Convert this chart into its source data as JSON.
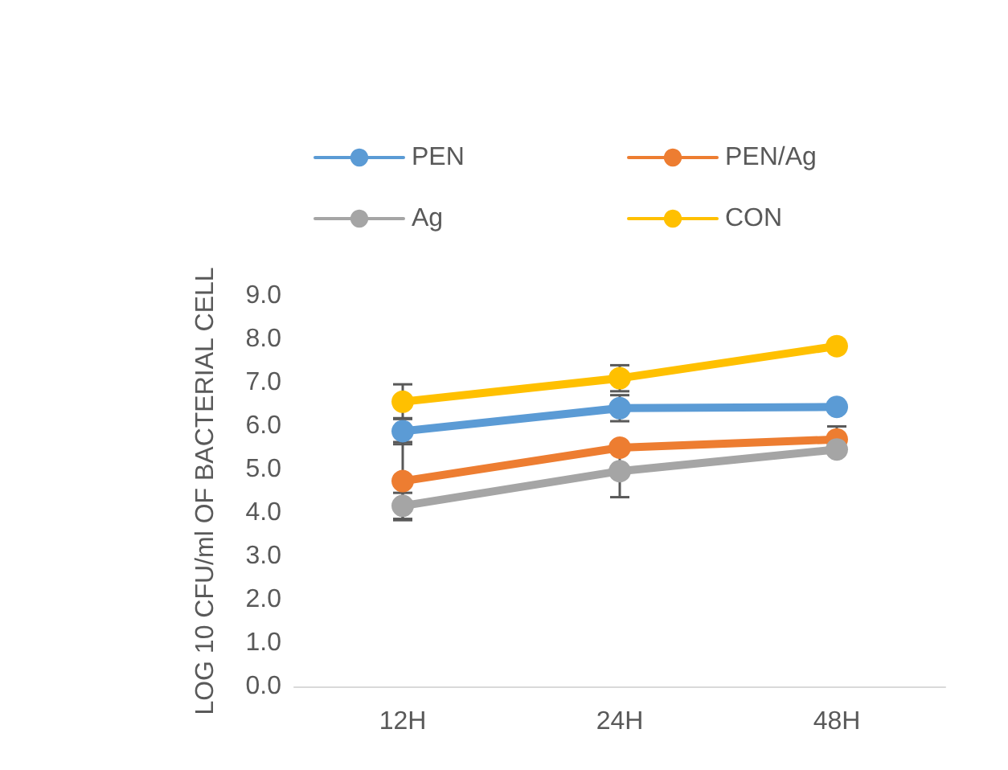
{
  "chart_data": {
    "type": "line",
    "ylabel": "LOG 10 CFU/ml OF BACTERIAL CELL",
    "categories": [
      "12H",
      "24H",
      "48H"
    ],
    "series": [
      {
        "name": "PEN",
        "color": "#5b9bd5",
        "values": [
          5.88,
          6.41,
          6.44
        ],
        "errors": [
          0.3,
          0.3,
          null
        ]
      },
      {
        "name": "PEN/Ag",
        "color": "#ed7d31",
        "values": [
          4.73,
          5.5,
          5.69
        ],
        "errors": [
          0.9,
          null,
          0.3
        ]
      },
      {
        "name": "Ag",
        "color": "#a5a5a5",
        "values": [
          4.16,
          4.96,
          5.46
        ],
        "errors": [
          0.3,
          0.6,
          null
        ]
      },
      {
        "name": "CON",
        "color": "#ffc000",
        "values": [
          6.56,
          7.1,
          7.84
        ],
        "errors": [
          0.4,
          0.3,
          null
        ]
      }
    ],
    "ylim": [
      0,
      9
    ],
    "yticks": [
      {
        "value": 0,
        "label": "0.0"
      },
      {
        "value": 1,
        "label": "1.0"
      },
      {
        "value": 2,
        "label": "2.0"
      },
      {
        "value": 3,
        "label": "3.0"
      },
      {
        "value": 4,
        "label": "4.0"
      },
      {
        "value": 5,
        "label": "5.0"
      },
      {
        "value": 6,
        "label": "6.0"
      },
      {
        "value": 7,
        "label": "7.0"
      },
      {
        "value": 8,
        "label": "8.0"
      },
      {
        "value": 9,
        "label": "9.0"
      }
    ],
    "grid": false,
    "legend": "top",
    "marker": "circle",
    "line_style": "solid"
  }
}
